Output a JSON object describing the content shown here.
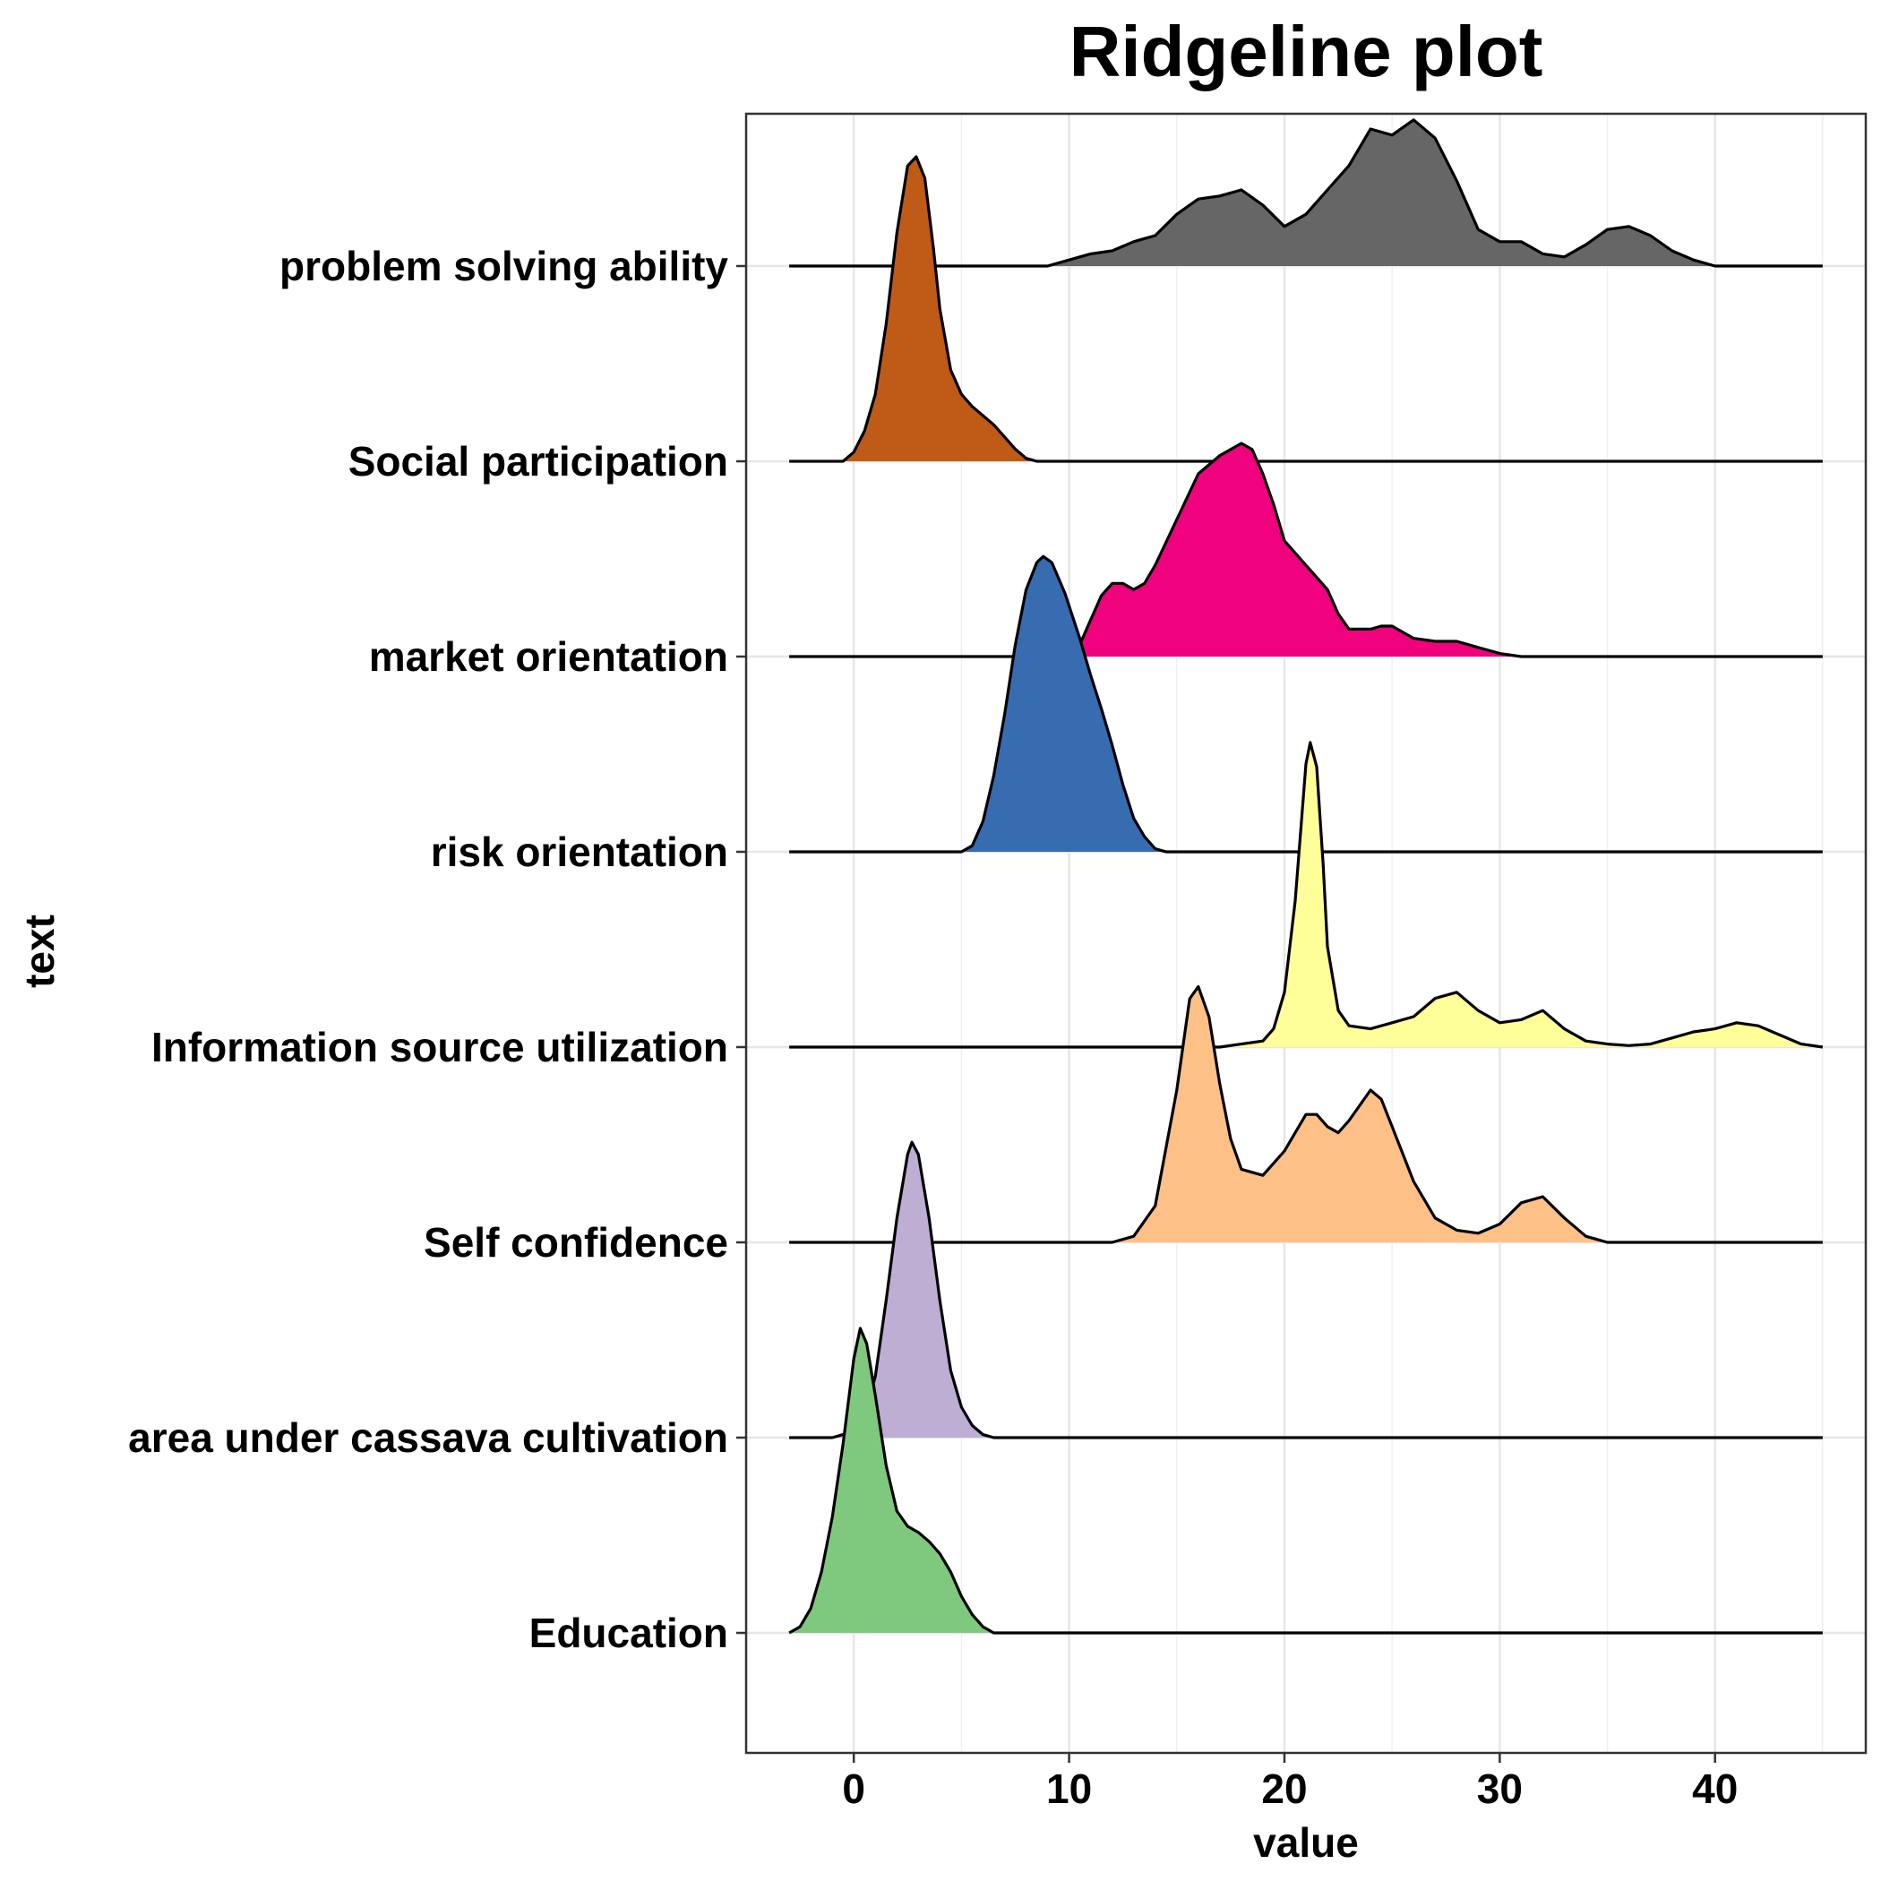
{
  "chart_data": {
    "type": "ridgeline",
    "title": "Ridgeline plot",
    "xlabel": "value",
    "ylabel": "text",
    "xlim": [
      -5,
      47
    ],
    "xticks": [
      0,
      10,
      20,
      30,
      40
    ],
    "xminor": [
      -5,
      5,
      15,
      25,
      35,
      45
    ],
    "x_range": [
      -3,
      45
    ],
    "grid": true,
    "legend": "none",
    "series": [
      {
        "name": "Education",
        "color": "#7fc97f",
        "density": [
          [
            -3,
            0
          ],
          [
            -2.5,
            0.02
          ],
          [
            -2,
            0.08
          ],
          [
            -1.5,
            0.2
          ],
          [
            -1,
            0.38
          ],
          [
            -0.5,
            0.62
          ],
          [
            0,
            0.9
          ],
          [
            0.3,
            1.0
          ],
          [
            0.6,
            0.95
          ],
          [
            1,
            0.78
          ],
          [
            1.5,
            0.55
          ],
          [
            2,
            0.4
          ],
          [
            2.5,
            0.35
          ],
          [
            3,
            0.33
          ],
          [
            3.5,
            0.3
          ],
          [
            4,
            0.26
          ],
          [
            4.5,
            0.2
          ],
          [
            5,
            0.12
          ],
          [
            5.5,
            0.06
          ],
          [
            6,
            0.02
          ],
          [
            6.5,
            0
          ]
        ]
      },
      {
        "name": "area under cassava cultivation",
        "color": "#beaed4",
        "density": [
          [
            -3,
            0
          ],
          [
            -1,
            0
          ],
          [
            -0.5,
            0.01
          ],
          [
            0,
            0.03
          ],
          [
            0.5,
            0.08
          ],
          [
            1,
            0.2
          ],
          [
            1.5,
            0.45
          ],
          [
            2,
            0.72
          ],
          [
            2.5,
            0.93
          ],
          [
            2.7,
            0.97
          ],
          [
            3,
            0.93
          ],
          [
            3.5,
            0.72
          ],
          [
            4,
            0.45
          ],
          [
            4.5,
            0.22
          ],
          [
            5,
            0.1
          ],
          [
            5.5,
            0.04
          ],
          [
            6,
            0.01
          ],
          [
            6.5,
            0
          ]
        ]
      },
      {
        "name": "Self confidence",
        "color": "#fdc086",
        "density": [
          [
            12,
            0
          ],
          [
            13,
            0.02
          ],
          [
            14,
            0.12
          ],
          [
            15,
            0.5
          ],
          [
            15.6,
            0.8
          ],
          [
            16,
            0.84
          ],
          [
            16.5,
            0.74
          ],
          [
            17,
            0.52
          ],
          [
            17.5,
            0.34
          ],
          [
            18,
            0.24
          ],
          [
            19,
            0.22
          ],
          [
            20,
            0.3
          ],
          [
            21,
            0.42
          ],
          [
            21.5,
            0.42
          ],
          [
            22,
            0.38
          ],
          [
            22.5,
            0.36
          ],
          [
            23,
            0.4
          ],
          [
            24,
            0.5
          ],
          [
            24.5,
            0.47
          ],
          [
            25,
            0.38
          ],
          [
            26,
            0.2
          ],
          [
            27,
            0.08
          ],
          [
            28,
            0.04
          ],
          [
            29,
            0.03
          ],
          [
            30,
            0.06
          ],
          [
            31,
            0.13
          ],
          [
            32,
            0.15
          ],
          [
            33,
            0.08
          ],
          [
            34,
            0.02
          ],
          [
            35,
            0
          ]
        ]
      },
      {
        "name": "Information source utilization",
        "color": "#ffff99",
        "density": [
          [
            17,
            0
          ],
          [
            18,
            0.01
          ],
          [
            19,
            0.02
          ],
          [
            19.5,
            0.06
          ],
          [
            20,
            0.18
          ],
          [
            20.5,
            0.48
          ],
          [
            20.8,
            0.75
          ],
          [
            21,
            0.93
          ],
          [
            21.2,
            1.0
          ],
          [
            21.5,
            0.92
          ],
          [
            21.8,
            0.6
          ],
          [
            22,
            0.33
          ],
          [
            22.5,
            0.12
          ],
          [
            23,
            0.07
          ],
          [
            24,
            0.06
          ],
          [
            25,
            0.08
          ],
          [
            26,
            0.1
          ],
          [
            27,
            0.16
          ],
          [
            28,
            0.18
          ],
          [
            29,
            0.12
          ],
          [
            30,
            0.08
          ],
          [
            31,
            0.09
          ],
          [
            32,
            0.12
          ],
          [
            33,
            0.06
          ],
          [
            34,
            0.02
          ],
          [
            35,
            0.01
          ],
          [
            36,
            0.005
          ],
          [
            37,
            0.01
          ],
          [
            38,
            0.03
          ],
          [
            39,
            0.05
          ],
          [
            40,
            0.06
          ],
          [
            41,
            0.08
          ],
          [
            42,
            0.07
          ],
          [
            43,
            0.04
          ],
          [
            44,
            0.01
          ],
          [
            45,
            0
          ]
        ]
      },
      {
        "name": "risk orientation",
        "color": "#386cb0",
        "density": [
          [
            5,
            0
          ],
          [
            5.5,
            0.02
          ],
          [
            6,
            0.1
          ],
          [
            6.5,
            0.25
          ],
          [
            7,
            0.45
          ],
          [
            7.5,
            0.68
          ],
          [
            8,
            0.86
          ],
          [
            8.5,
            0.95
          ],
          [
            8.8,
            0.97
          ],
          [
            9.2,
            0.95
          ],
          [
            9.8,
            0.85
          ],
          [
            10.5,
            0.7
          ],
          [
            11,
            0.58
          ],
          [
            11.5,
            0.47
          ],
          [
            12,
            0.35
          ],
          [
            12.5,
            0.22
          ],
          [
            13,
            0.11
          ],
          [
            13.5,
            0.05
          ],
          [
            14,
            0.01
          ],
          [
            14.5,
            0
          ]
        ]
      },
      {
        "name": "market orientation",
        "color": "#f0027f",
        "density": [
          [
            10,
            0
          ],
          [
            10.5,
            0.04
          ],
          [
            11,
            0.12
          ],
          [
            11.5,
            0.2
          ],
          [
            12,
            0.24
          ],
          [
            12.5,
            0.24
          ],
          [
            13,
            0.22
          ],
          [
            13.5,
            0.24
          ],
          [
            14,
            0.3
          ],
          [
            15,
            0.45
          ],
          [
            16,
            0.6
          ],
          [
            17,
            0.66
          ],
          [
            17.5,
            0.68
          ],
          [
            18,
            0.7
          ],
          [
            18.5,
            0.68
          ],
          [
            19,
            0.6
          ],
          [
            19.5,
            0.5
          ],
          [
            20,
            0.38
          ],
          [
            21,
            0.3
          ],
          [
            22,
            0.22
          ],
          [
            22.5,
            0.14
          ],
          [
            23,
            0.09
          ],
          [
            24,
            0.09
          ],
          [
            24.5,
            0.1
          ],
          [
            25,
            0.1
          ],
          [
            26,
            0.06
          ],
          [
            27,
            0.05
          ],
          [
            28,
            0.05
          ],
          [
            29,
            0.03
          ],
          [
            30,
            0.01
          ],
          [
            31,
            0
          ]
        ]
      },
      {
        "name": "Social participation",
        "color": "#bf5b17",
        "density": [
          [
            -0.5,
            0
          ],
          [
            0,
            0.03
          ],
          [
            0.5,
            0.1
          ],
          [
            1,
            0.22
          ],
          [
            1.5,
            0.45
          ],
          [
            2,
            0.75
          ],
          [
            2.5,
            0.97
          ],
          [
            2.9,
            1.0
          ],
          [
            3.3,
            0.93
          ],
          [
            3.7,
            0.7
          ],
          [
            4,
            0.5
          ],
          [
            4.5,
            0.3
          ],
          [
            5,
            0.22
          ],
          [
            5.5,
            0.18
          ],
          [
            6,
            0.15
          ],
          [
            6.5,
            0.12
          ],
          [
            7,
            0.08
          ],
          [
            7.5,
            0.04
          ],
          [
            8,
            0.01
          ],
          [
            8.5,
            0
          ]
        ]
      },
      {
        "name": "problem solving ability",
        "color": "#666666",
        "density": [
          [
            9,
            0
          ],
          [
            10,
            0.02
          ],
          [
            11,
            0.04
          ],
          [
            12,
            0.05
          ],
          [
            13,
            0.08
          ],
          [
            14,
            0.1
          ],
          [
            15,
            0.17
          ],
          [
            16,
            0.22
          ],
          [
            17,
            0.23
          ],
          [
            18,
            0.25
          ],
          [
            19,
            0.2
          ],
          [
            20,
            0.13
          ],
          [
            21,
            0.17
          ],
          [
            22,
            0.25
          ],
          [
            23,
            0.33
          ],
          [
            24,
            0.45
          ],
          [
            25,
            0.43
          ],
          [
            26,
            0.48
          ],
          [
            27,
            0.42
          ],
          [
            28,
            0.28
          ],
          [
            29,
            0.12
          ],
          [
            30,
            0.08
          ],
          [
            31,
            0.08
          ],
          [
            32,
            0.04
          ],
          [
            33,
            0.03
          ],
          [
            34,
            0.07
          ],
          [
            35,
            0.12
          ],
          [
            36,
            0.13
          ],
          [
            37,
            0.1
          ],
          [
            38,
            0.05
          ],
          [
            39,
            0.02
          ],
          [
            40,
            0
          ]
        ]
      }
    ]
  }
}
